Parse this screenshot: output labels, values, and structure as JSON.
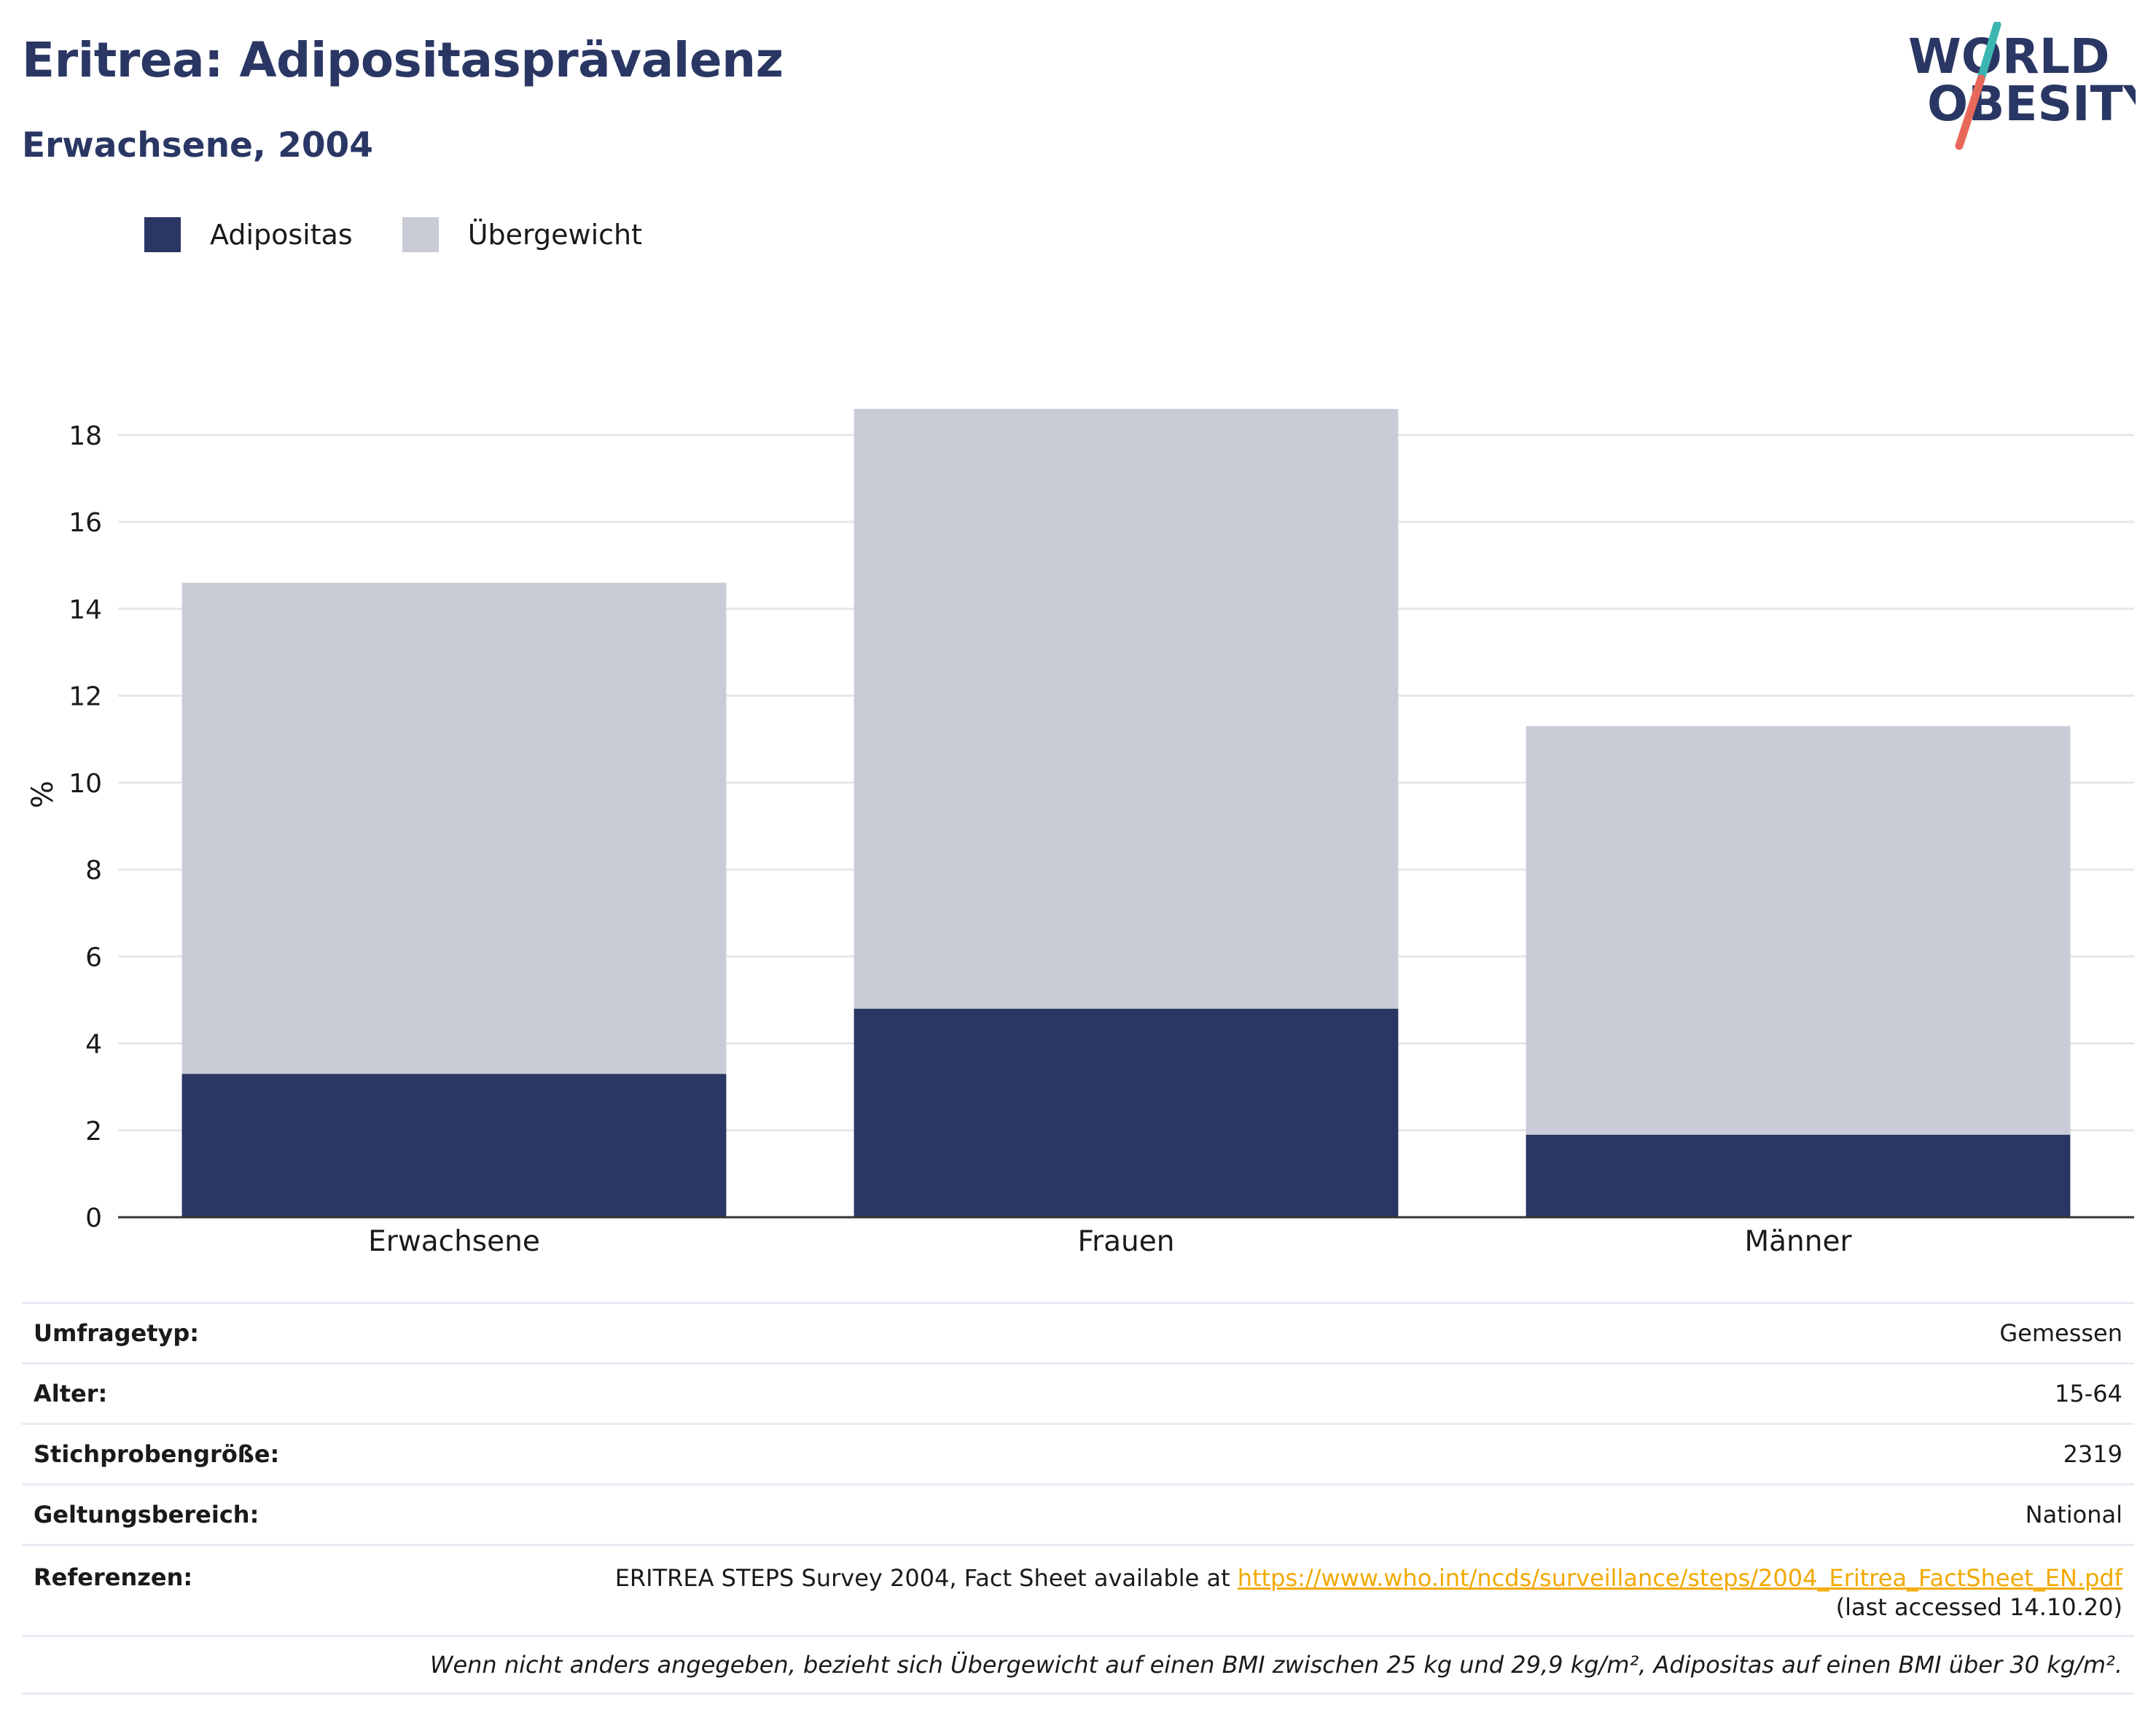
{
  "title": "Eritrea: Adipositasprävalenz",
  "subtitle": "Erwachsene, 2004",
  "logo": {
    "line1": "WORLD",
    "line2": "OBESITY"
  },
  "colors": {
    "obesity": "#2a3764",
    "overweight": "#c9cbd6",
    "grid": "#e6e6e6",
    "axis": "#333333",
    "link": "#f2a900",
    "logo_slash_top": "#3bb6b0",
    "logo_slash_bottom": "#e8685a"
  },
  "legend": [
    {
      "label": "Adipositas",
      "color": "#2a3764"
    },
    {
      "label": "Übergewicht",
      "color": "#c9cbd6"
    }
  ],
  "chart_data": {
    "type": "bar",
    "stacked": true,
    "categories": [
      "Erwachsene",
      "Frauen",
      "Männer"
    ],
    "series": [
      {
        "name": "Adipositas",
        "values": [
          3.3,
          4.8,
          1.9
        ]
      },
      {
        "name": "Übergewicht",
        "values": [
          11.3,
          13.8,
          9.4
        ]
      }
    ],
    "ylabel": "%",
    "yticks": [
      0,
      2,
      4,
      6,
      8,
      10,
      12,
      14,
      16,
      18
    ],
    "ylim": [
      0,
      18.6
    ],
    "grid": true,
    "legend_position": "top-left"
  },
  "info": {
    "survey_type_label": "Umfragetyp:",
    "survey_type_value": "Gemessen",
    "age_label": "Alter:",
    "age_value": "15-64",
    "sample_label": "Stichprobengröße:",
    "sample_value": "2319",
    "scope_label": "Geltungsbereich:",
    "scope_value": "National",
    "refs_label": "Referenzen:",
    "refs_text": "ERITREA STEPS Survey 2004, Fact Sheet available at ",
    "refs_link": "https://www.who.int/ncds/surveillance/steps/2004_Eritrea_FactSheet_EN.pdf",
    "refs_accessed": "(last accessed 14.10.20)",
    "footnote": "Wenn nicht anders angegeben, bezieht sich Übergewicht auf einen BMI zwischen 25 kg und 29,9 kg/m², Adipositas auf einen BMI über 30 kg/m²."
  }
}
